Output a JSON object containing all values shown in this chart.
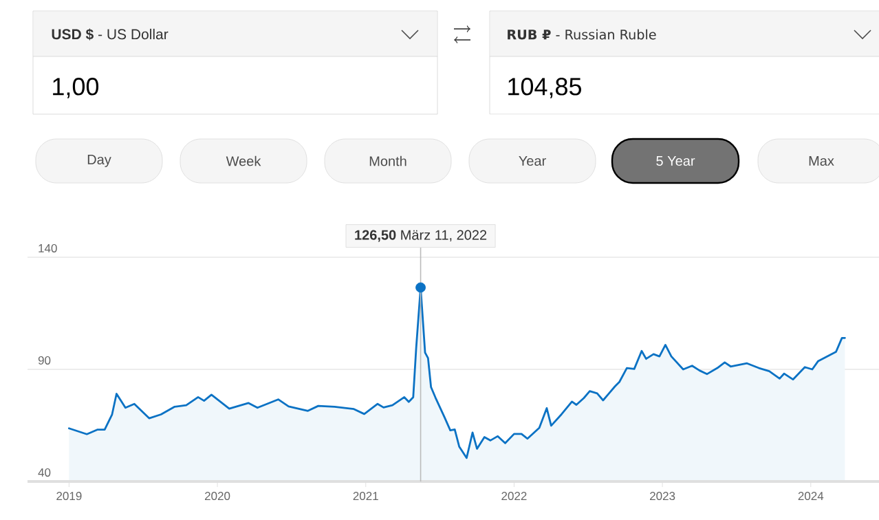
{
  "chart_data": {
    "type": "area",
    "xlim": [
      2018.72,
      2024.46
    ],
    "xticks": [
      2019,
      2020,
      2021,
      2022,
      2023,
      2024
    ],
    "ylim": [
      40,
      140
    ],
    "yticks": [
      40,
      90,
      140
    ],
    "grid": "y",
    "series": [
      {
        "color": "#0b72c4",
        "x": [
          2019.0,
          2019.12,
          2019.19,
          2019.24,
          2019.29,
          2019.32,
          2019.38,
          2019.44,
          2019.54,
          2019.62,
          2019.71,
          2019.79,
          2019.87,
          2019.91,
          2019.96,
          2020.08,
          2020.21,
          2020.27,
          2020.41,
          2020.48,
          2020.61,
          2020.68,
          2020.79,
          2020.92,
          2020.99,
          2021.08,
          2021.12,
          2021.18,
          2021.26,
          2021.29,
          2021.32,
          2021.34,
          2021.37,
          2021.4,
          2021.42,
          2021.44,
          2021.47,
          2021.53,
          2021.57,
          2021.6,
          2021.63,
          2021.68,
          2021.72,
          2021.75,
          2021.8,
          2021.84,
          2021.89,
          2021.94,
          2022.0,
          2022.05,
          2022.09,
          2022.17,
          2022.22,
          2022.25,
          2022.32,
          2022.39,
          2022.42,
          2022.47,
          2022.51,
          2022.56,
          2022.6,
          2022.64,
          2022.68,
          2022.71,
          2022.76,
          2022.81,
          2022.86,
          2022.89,
          2022.94,
          2022.98,
          2023.02,
          2023.06,
          2023.14,
          2023.2,
          2023.25,
          2023.3,
          2023.37,
          2023.42,
          2023.46,
          2023.57,
          2023.65,
          2023.72,
          2023.79,
          2023.82,
          2023.88,
          2023.96,
          2024.01,
          2024.05,
          2024.17,
          2024.21,
          2024.23
        ],
        "values": [
          63.7,
          61.1,
          63.1,
          63.1,
          69.9,
          79.1,
          72.9,
          74.6,
          68.2,
          69.9,
          73.3,
          74.0,
          77.6,
          76.0,
          78.7,
          72.5,
          75.0,
          72.9,
          76.6,
          73.5,
          71.5,
          73.7,
          73.3,
          72.3,
          70.1,
          74.6,
          73.0,
          74.0,
          77.6,
          75.5,
          77.6,
          99.5,
          126.5,
          97.5,
          95.0,
          82.1,
          77.4,
          68.8,
          62.8,
          63.2,
          55.6,
          50.5,
          61.8,
          54.6,
          59.8,
          58.3,
          60.2,
          57.1,
          61.2,
          61.2,
          59.1,
          63.9,
          72.7,
          64.9,
          70.0,
          75.6,
          74.2,
          77.2,
          80.3,
          79.3,
          76.2,
          79.3,
          82.4,
          84.4,
          90.6,
          90.2,
          98.2,
          94.7,
          96.8,
          95.8,
          100.9,
          95.8,
          90.0,
          91.6,
          89.5,
          87.9,
          90.6,
          93.1,
          91.3,
          92.7,
          90.6,
          89.2,
          85.9,
          88.1,
          85.5,
          91.0,
          90.0,
          93.7,
          97.8,
          104.0,
          104.0
        ]
      },
      {
        "type": "scatter",
        "marker": "circle",
        "color": "#0b72c4",
        "x": [
          2021.37
        ],
        "values": [
          126.5
        ]
      }
    ],
    "ref_lines": [
      {
        "axis": "x",
        "value": 2021.37,
        "color": "#bbbbbb"
      }
    ],
    "annotations": [
      "**USD $** - US Dollar",
      "1,00",
      "**RUB ₽** - Russian Ruble",
      "104,85",
      "Day",
      "Week",
      "Month",
      "Year",
      "5 Year",
      "Max",
      "**126,50** März 11, 2022"
    ]
  }
}
